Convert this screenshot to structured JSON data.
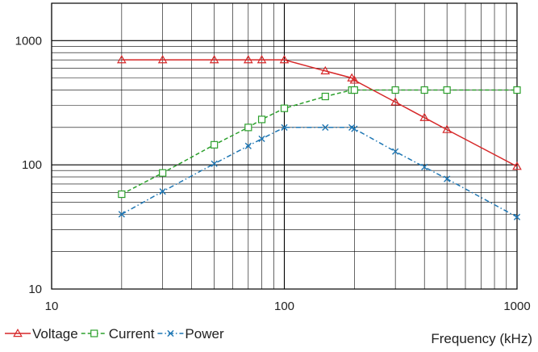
{
  "chart_data": {
    "type": "line",
    "title": "",
    "xlabel": "Frequency (kHz)",
    "ylabel": "",
    "x_scale": "log",
    "y_scale": "log",
    "xlim": [
      10,
      1000
    ],
    "ylim": [
      10,
      2000
    ],
    "x_ticks": [
      {
        "value": 10,
        "label": "10"
      },
      {
        "value": 100,
        "label": "100"
      },
      {
        "value": 1000,
        "label": "1000"
      }
    ],
    "y_ticks": [
      {
        "value": 10,
        "label": "10"
      },
      {
        "value": 100,
        "label": "100"
      },
      {
        "value": 1000,
        "label": "1000"
      }
    ],
    "grid": true,
    "legend_position": "bottom-left",
    "series": [
      {
        "name": "Voltage",
        "color": "#d62728",
        "line_style": "solid",
        "marker": "triangle",
        "x": [
          20,
          30,
          50,
          70,
          80,
          100,
          150,
          195,
          200,
          300,
          400,
          500,
          1000
        ],
        "y": [
          700,
          700,
          700,
          700,
          700,
          700,
          570,
          500,
          480,
          320,
          240,
          192,
          97
        ]
      },
      {
        "name": "Current",
        "color": "#2ca02c",
        "line_style": "dashed",
        "marker": "square",
        "x": [
          20,
          30,
          50,
          70,
          80,
          100,
          150,
          195,
          200,
          300,
          400,
          500,
          1000
        ],
        "y": [
          58,
          86,
          145,
          200,
          232,
          285,
          355,
          400,
          400,
          400,
          400,
          400,
          400
        ]
      },
      {
        "name": "Power",
        "color": "#1f77b4",
        "line_style": "dashdot",
        "marker": "x",
        "x": [
          20,
          30,
          50,
          70,
          80,
          100,
          150,
          195,
          200,
          300,
          400,
          500,
          1000
        ],
        "y": [
          40,
          61,
          102,
          142,
          162,
          200,
          200,
          200,
          195,
          128,
          96,
          77,
          38
        ]
      }
    ]
  }
}
